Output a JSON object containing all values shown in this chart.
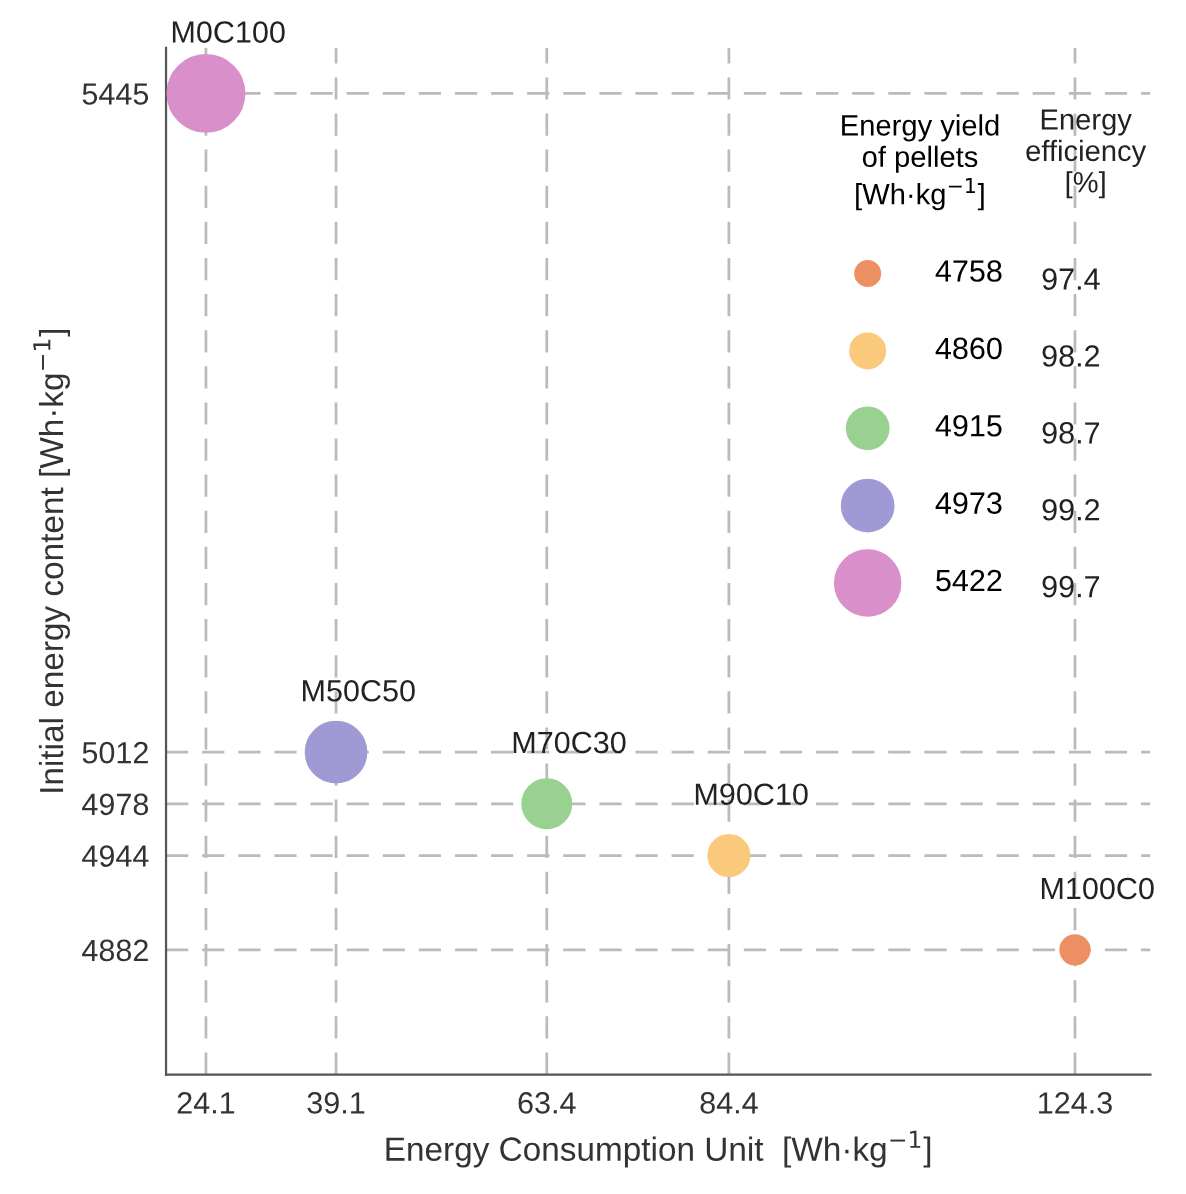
{
  "chart_data": {
    "type": "bubble",
    "xlabel": "Energy Consumption Unit  [Wh·kg$^{−1}$]",
    "ylabel": "Initial energy content [Wh·kg$^{−1}$]",
    "legend_title": "Energy yield\nof pellets\n[Wh·kg$^{−1}$]",
    "xlim": [
      19.5,
      133
    ],
    "ylim": [
      4800,
      5475
    ],
    "xticks": [
      24.1,
      39.1,
      63.4,
      84.4,
      124.3
    ],
    "yticks": [
      4882,
      4944,
      4978,
      5012,
      5445
    ],
    "grid": true,
    "legend": "right",
    "series": [
      {
        "name": "4758",
        "color": "#ec9063",
        "x": [
          124.3
        ],
        "values": [
          4882
        ],
        "sizes": [
          0.14
        ]
      },
      {
        "name": "4860",
        "color": "#fbc97b",
        "x": [
          84.4
        ],
        "values": [
          4944
        ],
        "sizes": [
          0.28
        ]
      },
      {
        "name": "4915",
        "color": "#98d190",
        "x": [
          63.4
        ],
        "values": [
          4978
        ],
        "sizes": [
          0.4
        ]
      },
      {
        "name": "4973",
        "color": "#9f9ad6",
        "x": [
          39.1
        ],
        "values": [
          5012
        ],
        "sizes": [
          0.62
        ]
      },
      {
        "name": "5422",
        "color": "#d98fc9",
        "x": [
          24.1
        ],
        "values": [
          5445
        ],
        "sizes": [
          1
        ]
      }
    ],
    "annotations": [
      {
        "text": "M0C100",
        "x": 24.1,
        "y": 5445
      },
      {
        "text": "M50C50",
        "x": 39.1,
        "y": 5012
      },
      {
        "text": "M70C30",
        "x": 63.4,
        "y": 4978
      },
      {
        "text": "M90C10",
        "x": 84.4,
        "y": 4944
      },
      {
        "text": "M100C0",
        "x": 124.3,
        "y": 4882
      },
      "Energy\nefficiency\n[%]",
      "97.4",
      "98.2",
      "98.7",
      "99.2",
      "99.7"
    ]
  }
}
